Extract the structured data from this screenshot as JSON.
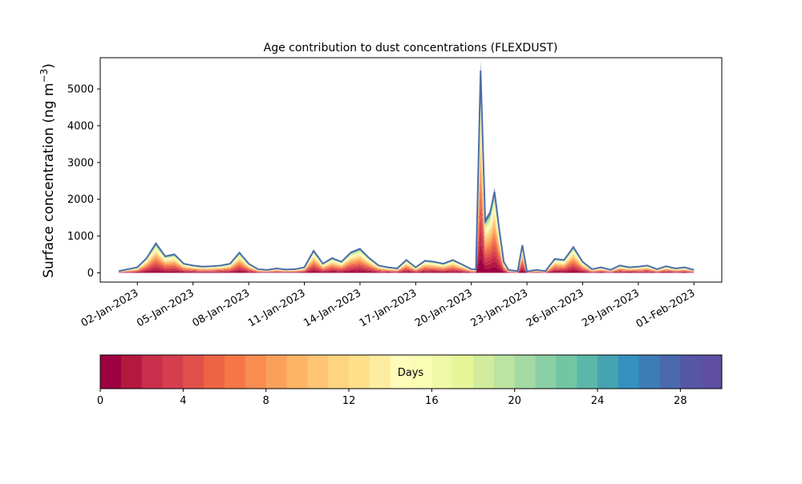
{
  "chart_data": {
    "type": "area",
    "title": "Age contribution to dust concentrations (FLEXDUST)",
    "ylabel": "Surface concentration (ng m",
    "ylabel_sup": "−3",
    "ylabel_close": ")",
    "xlabel": "",
    "ylim": [
      -250,
      5850
    ],
    "xlim": [
      "2022-12-31T00:00",
      "2023-02-02T12:00"
    ],
    "yticks": [
      0,
      1000,
      2000,
      3000,
      4000,
      5000
    ],
    "ytick_labels": [
      "0",
      "1000",
      "2000",
      "3000",
      "4000",
      "5000"
    ],
    "xticks": [
      "2023-01-02",
      "2023-01-05",
      "2023-01-08",
      "2023-01-11",
      "2023-01-14",
      "2023-01-17",
      "2023-01-20",
      "2023-01-23",
      "2023-01-26",
      "2023-01-29",
      "2023-02-01"
    ],
    "xtick_labels": [
      "02-Jan-2023",
      "05-Jan-2023",
      "08-Jan-2023",
      "11-Jan-2023",
      "14-Jan-2023",
      "17-Jan-2023",
      "20-Jan-2023",
      "23-Jan-2023",
      "26-Jan-2023",
      "29-Jan-2023",
      "01-Feb-2023"
    ],
    "grid": false,
    "total_series": {
      "x": [
        "2023-01-01T00:00",
        "2023-01-01T12:00",
        "2023-01-02T00:00",
        "2023-01-02T12:00",
        "2023-01-03T00:00",
        "2023-01-03T12:00",
        "2023-01-04T00:00",
        "2023-01-04T12:00",
        "2023-01-05T00:00",
        "2023-01-05T12:00",
        "2023-01-06T00:00",
        "2023-01-06T12:00",
        "2023-01-07T00:00",
        "2023-01-07T12:00",
        "2023-01-08T00:00",
        "2023-01-08T12:00",
        "2023-01-09T00:00",
        "2023-01-09T12:00",
        "2023-01-10T00:00",
        "2023-01-10T12:00",
        "2023-01-11T00:00",
        "2023-01-11T12:00",
        "2023-01-12T00:00",
        "2023-01-12T12:00",
        "2023-01-13T00:00",
        "2023-01-13T12:00",
        "2023-01-14T00:00",
        "2023-01-14T12:00",
        "2023-01-15T00:00",
        "2023-01-15T12:00",
        "2023-01-16T00:00",
        "2023-01-16T12:00",
        "2023-01-17T00:00",
        "2023-01-17T12:00",
        "2023-01-18T00:00",
        "2023-01-18T12:00",
        "2023-01-19T00:00",
        "2023-01-19T12:00",
        "2023-01-20T00:00",
        "2023-01-20T06:00",
        "2023-01-20T12:00",
        "2023-01-20T18:00",
        "2023-01-21T00:00",
        "2023-01-21T06:00",
        "2023-01-21T12:00",
        "2023-01-21T18:00",
        "2023-01-22T00:00",
        "2023-01-22T12:00",
        "2023-01-22T18:00",
        "2023-01-23T00:00",
        "2023-01-23T06:00",
        "2023-01-23T12:00",
        "2023-01-24T00:00",
        "2023-01-24T12:00",
        "2023-01-25T00:00",
        "2023-01-25T12:00",
        "2023-01-26T00:00",
        "2023-01-26T12:00",
        "2023-01-27T00:00",
        "2023-01-27T12:00",
        "2023-01-28T00:00",
        "2023-01-28T12:00",
        "2023-01-29T00:00",
        "2023-01-29T12:00",
        "2023-01-30T00:00",
        "2023-01-30T12:00",
        "2023-01-31T00:00",
        "2023-01-31T12:00",
        "2023-02-01T00:00"
      ],
      "values": [
        50,
        100,
        150,
        400,
        800,
        450,
        500,
        250,
        200,
        170,
        180,
        200,
        250,
        550,
        250,
        100,
        80,
        120,
        90,
        100,
        150,
        600,
        250,
        400,
        300,
        550,
        650,
        400,
        200,
        150,
        120,
        350,
        150,
        330,
        300,
        250,
        350,
        230,
        100,
        90,
        5500,
        1400,
        1600,
        2200,
        1200,
        300,
        80,
        50,
        750,
        40,
        60,
        80,
        50,
        380,
        350,
        700,
        300,
        100,
        150,
        80,
        200,
        150,
        170,
        200,
        100,
        180,
        120,
        150,
        80
      ]
    },
    "layer_fractions": {
      "description": "",
      "values": [
        0.08,
        0.07,
        0.07,
        0.06,
        0.06,
        0.06,
        0.05,
        0.05,
        0.05,
        0.05,
        0.04,
        0.04,
        0.04,
        0.04,
        0.03,
        0.03,
        0.03,
        0.03,
        0.02,
        0.02,
        0.02,
        0.02,
        0.02,
        0.01,
        0.01,
        0.01,
        0.01,
        0.01,
        0.01,
        0.01
      ]
    },
    "colorbar": {
      "label": "Days",
      "range": [
        0,
        30
      ],
      "ticks": [
        0,
        4,
        8,
        12,
        16,
        20,
        24,
        28
      ],
      "tick_labels": [
        "0",
        "4",
        "8",
        "12",
        "16",
        "20",
        "24",
        "28"
      ],
      "colors": [
        "#9e0142",
        "#b4183e",
        "#c92e4a",
        "#d53e4f",
        "#e25149",
        "#ed6445",
        "#f57748",
        "#f88c51",
        "#fba05b",
        "#fdb465",
        "#fdc574",
        "#fed481",
        "#fee08b",
        "#feeda1",
        "#fffbb8",
        "#f9fcb5",
        "#eff8a6",
        "#e6f598",
        "#d1ec9c",
        "#bbe4a0",
        "#a4daa4",
        "#8ad0a4",
        "#72c6a4",
        "#5bb7a9",
        "#46a3b1",
        "#3690c0",
        "#3d7db7",
        "#4968ae",
        "#5556a6",
        "#5e4fa2"
      ]
    },
    "line_color": "#4b6ea9"
  }
}
